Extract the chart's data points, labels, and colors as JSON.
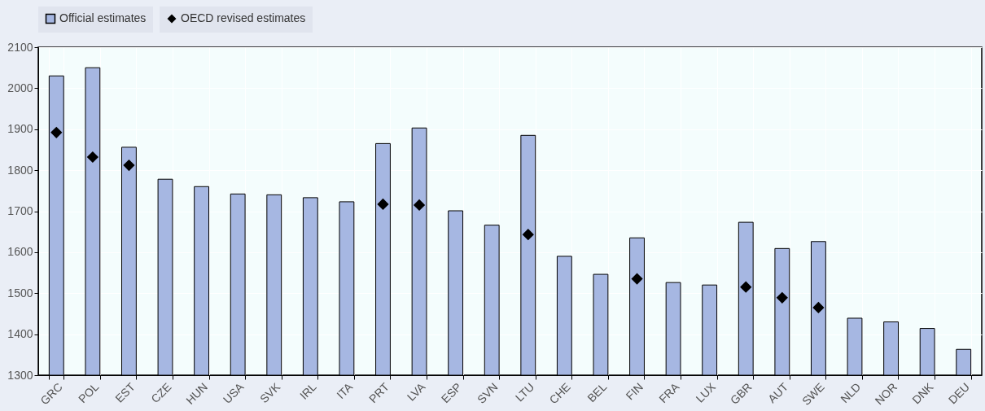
{
  "chart_data": {
    "type": "bar",
    "categories": [
      "GRC",
      "POL",
      "EST",
      "CZE",
      "HUN",
      "USA",
      "SVK",
      "IRL",
      "ITA",
      "PRT",
      "LVA",
      "ESP",
      "SVN",
      "LTU",
      "CHE",
      "BEL",
      "FIN",
      "FRA",
      "LUX",
      "GBR",
      "AUT",
      "SWE",
      "NLD",
      "NOR",
      "DNK",
      "DEU"
    ],
    "series": [
      {
        "name": "Official estimates",
        "color": "#a6b7e2",
        "values": [
          2030,
          2050,
          1856,
          1778,
          1760,
          1742,
          1740,
          1733,
          1723,
          1865,
          1903,
          1701,
          1666,
          1885,
          1590,
          1546,
          1635,
          1526,
          1520,
          1673,
          1609,
          1626,
          1439,
          1430,
          1414,
          1363
        ]
      },
      {
        "name": "OECD revised estimates",
        "type": "scatter",
        "marker": "diamond",
        "color": "#000000",
        "values": [
          1892,
          1832,
          1812,
          null,
          null,
          null,
          null,
          null,
          null,
          1717,
          1715,
          null,
          null,
          1643,
          null,
          null,
          1535,
          null,
          null,
          1515,
          1489,
          1465,
          null,
          null,
          null,
          null
        ]
      }
    ],
    "ylim": [
      1300,
      2100
    ],
    "yticks": [
      1300,
      1400,
      1500,
      1600,
      1700,
      1800,
      1900,
      2000,
      2100
    ],
    "grid": true,
    "legend": "top"
  }
}
